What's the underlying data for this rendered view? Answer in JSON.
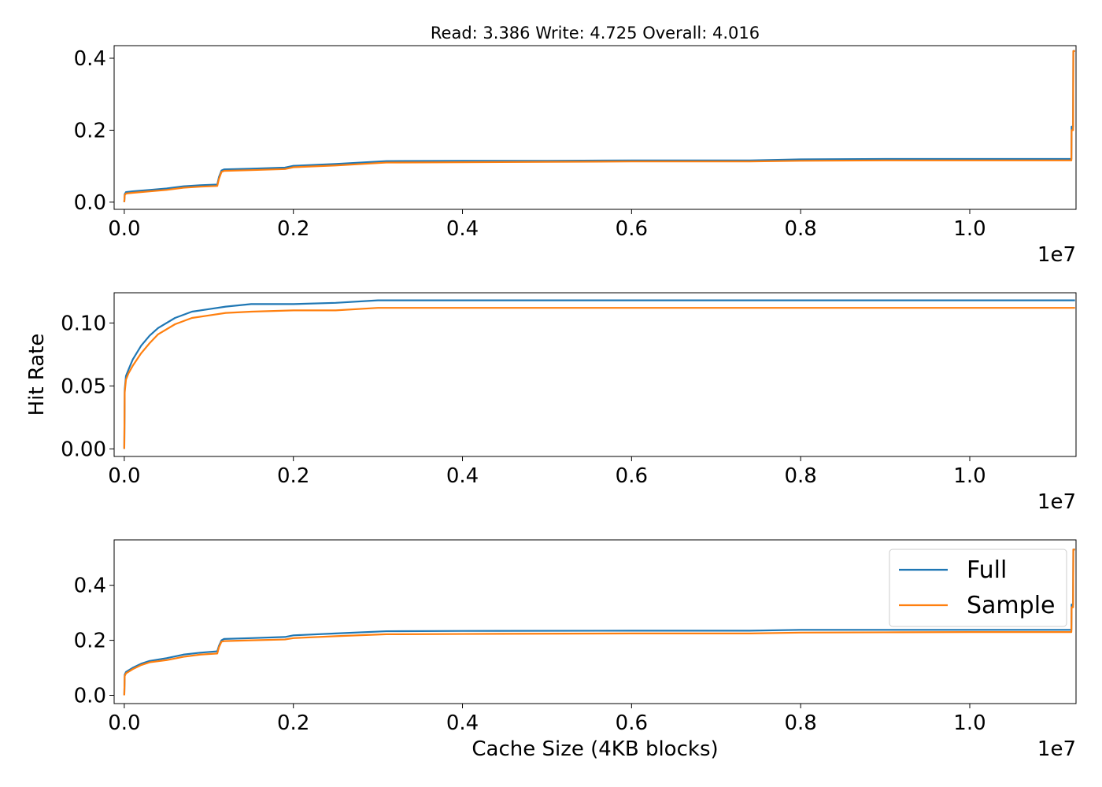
{
  "figure": {
    "title": "Read: 3.386 Write: 4.725 Overall: 4.016",
    "ylabel": "Hit Rate",
    "xlabel": "Cache Size (4KB blocks)"
  },
  "colors": {
    "full": "#1f77b4",
    "sample": "#ff7f0e",
    "axes": "#000000",
    "legend_border": "#cccccc"
  },
  "chart_data": [
    {
      "type": "line",
      "title": "Read: 3.386 Write: 4.725 Overall: 4.016",
      "xlabel": "",
      "ylabel": "",
      "x_offset_label": "1e7",
      "xlim": [
        -0.012,
        1.1257
      ],
      "ylim": [
        -0.02,
        0.435
      ],
      "x_ticks": [
        0.0,
        0.2,
        0.4,
        0.6,
        0.8,
        1.0
      ],
      "x_tick_labels": [
        "0.0",
        "0.2",
        "0.4",
        "0.6",
        "0.8",
        "1.0"
      ],
      "y_ticks": [
        0.0,
        0.2,
        0.4
      ],
      "y_tick_labels": [
        "0.0",
        "0.2",
        "0.4"
      ],
      "grid": false,
      "legend": null,
      "series": [
        {
          "name": "Full",
          "color": "#1f77b4",
          "x": [
            0.0,
            0.0005,
            0.002,
            0.01,
            0.03,
            0.05,
            0.07,
            0.09,
            0.11,
            0.112,
            0.115,
            0.118,
            0.15,
            0.19,
            0.2,
            0.25,
            0.31,
            0.4,
            0.5,
            0.6,
            0.7,
            0.74,
            0.8,
            0.9,
            1.0,
            1.05,
            1.1,
            1.1202,
            1.1205,
            1.1222,
            1.1225,
            1.1245
          ],
          "y": [
            0.0,
            0.022,
            0.028,
            0.03,
            0.034,
            0.038,
            0.044,
            0.047,
            0.049,
            0.07,
            0.088,
            0.091,
            0.093,
            0.096,
            0.101,
            0.106,
            0.114,
            0.115,
            0.115,
            0.116,
            0.116,
            0.116,
            0.119,
            0.12,
            0.12,
            0.12,
            0.12,
            0.12,
            0.21,
            0.21,
            0.42,
            0.42
          ]
        },
        {
          "name": "Sample",
          "color": "#ff7f0e",
          "x": [
            0.0,
            0.0005,
            0.002,
            0.01,
            0.03,
            0.05,
            0.07,
            0.09,
            0.11,
            0.112,
            0.115,
            0.118,
            0.15,
            0.19,
            0.2,
            0.25,
            0.31,
            0.4,
            0.5,
            0.6,
            0.7,
            0.74,
            0.8,
            0.9,
            1.0,
            1.05,
            1.1,
            1.1202,
            1.1205,
            1.1222,
            1.1225,
            1.1245
          ],
          "y": [
            0.0,
            0.019,
            0.024,
            0.026,
            0.03,
            0.034,
            0.04,
            0.043,
            0.045,
            0.065,
            0.084,
            0.087,
            0.089,
            0.092,
            0.097,
            0.102,
            0.11,
            0.111,
            0.112,
            0.113,
            0.113,
            0.113,
            0.115,
            0.116,
            0.116,
            0.116,
            0.116,
            0.116,
            0.2,
            0.2,
            0.42,
            0.42
          ]
        }
      ]
    },
    {
      "type": "line",
      "title": "",
      "xlabel": "",
      "ylabel": "Hit Rate",
      "x_offset_label": "1e7",
      "xlim": [
        -0.012,
        1.1257
      ],
      "ylim": [
        -0.006,
        0.124
      ],
      "x_ticks": [
        0.0,
        0.2,
        0.4,
        0.6,
        0.8,
        1.0
      ],
      "x_tick_labels": [
        "0.0",
        "0.2",
        "0.4",
        "0.6",
        "0.8",
        "1.0"
      ],
      "y_ticks": [
        0.0,
        0.05,
        0.1
      ],
      "y_tick_labels": [
        "0.00",
        "0.05",
        "0.10"
      ],
      "grid": false,
      "legend": null,
      "series": [
        {
          "name": "Full",
          "color": "#1f77b4",
          "x": [
            0.0,
            0.0005,
            0.002,
            0.005,
            0.01,
            0.02,
            0.03,
            0.04,
            0.06,
            0.08,
            0.1,
            0.12,
            0.15,
            0.2,
            0.25,
            0.3,
            0.4,
            0.6,
            0.8,
            1.0,
            1.1245
          ],
          "y": [
            0.0,
            0.047,
            0.058,
            0.063,
            0.071,
            0.082,
            0.09,
            0.096,
            0.104,
            0.109,
            0.111,
            0.113,
            0.115,
            0.115,
            0.116,
            0.118,
            0.118,
            0.118,
            0.118,
            0.118,
            0.118
          ]
        },
        {
          "name": "Sample",
          "color": "#ff7f0e",
          "x": [
            0.0,
            0.0005,
            0.002,
            0.005,
            0.01,
            0.02,
            0.03,
            0.04,
            0.06,
            0.08,
            0.1,
            0.12,
            0.15,
            0.2,
            0.25,
            0.3,
            0.4,
            0.6,
            0.8,
            1.0,
            1.1245
          ],
          "y": [
            0.0,
            0.045,
            0.055,
            0.06,
            0.066,
            0.076,
            0.084,
            0.091,
            0.099,
            0.104,
            0.106,
            0.108,
            0.109,
            0.11,
            0.11,
            0.112,
            0.112,
            0.112,
            0.112,
            0.112,
            0.112
          ]
        }
      ]
    },
    {
      "type": "line",
      "title": "",
      "xlabel": "Cache Size (4KB blocks)",
      "ylabel": "",
      "x_offset_label": "1e7",
      "xlim": [
        -0.012,
        1.1257
      ],
      "ylim": [
        -0.03,
        0.565
      ],
      "x_ticks": [
        0.0,
        0.2,
        0.4,
        0.6,
        0.8,
        1.0
      ],
      "x_tick_labels": [
        "0.0",
        "0.2",
        "0.4",
        "0.6",
        "0.8",
        "1.0"
      ],
      "y_ticks": [
        0.0,
        0.2,
        0.4
      ],
      "y_tick_labels": [
        "0.0",
        "0.2",
        "0.4"
      ],
      "grid": false,
      "legend": {
        "position": "upper right",
        "entries": [
          "Full",
          "Sample"
        ]
      },
      "series": [
        {
          "name": "Full",
          "color": "#1f77b4",
          "x": [
            0.0,
            0.0005,
            0.002,
            0.01,
            0.02,
            0.03,
            0.05,
            0.07,
            0.09,
            0.11,
            0.112,
            0.115,
            0.118,
            0.15,
            0.19,
            0.2,
            0.25,
            0.31,
            0.4,
            0.6,
            0.74,
            0.8,
            0.9,
            1.0,
            1.1202,
            1.1205,
            1.1222,
            1.1225,
            1.1245
          ],
          "y": [
            0.0,
            0.075,
            0.085,
            0.1,
            0.115,
            0.125,
            0.135,
            0.148,
            0.155,
            0.16,
            0.18,
            0.2,
            0.205,
            0.208,
            0.212,
            0.218,
            0.225,
            0.233,
            0.234,
            0.235,
            0.235,
            0.238,
            0.238,
            0.238,
            0.238,
            0.33,
            0.33,
            0.53,
            0.53
          ]
        },
        {
          "name": "Sample",
          "color": "#ff7f0e",
          "x": [
            0.0,
            0.0005,
            0.002,
            0.01,
            0.02,
            0.03,
            0.05,
            0.07,
            0.09,
            0.11,
            0.112,
            0.115,
            0.118,
            0.15,
            0.19,
            0.2,
            0.25,
            0.31,
            0.4,
            0.6,
            0.74,
            0.8,
            0.9,
            1.0,
            1.1202,
            1.1205,
            1.1222,
            1.1225,
            1.1245
          ],
          "y": [
            0.0,
            0.07,
            0.08,
            0.095,
            0.11,
            0.12,
            0.128,
            0.14,
            0.148,
            0.152,
            0.175,
            0.195,
            0.197,
            0.2,
            0.203,
            0.208,
            0.215,
            0.222,
            0.223,
            0.225,
            0.225,
            0.228,
            0.229,
            0.23,
            0.23,
            0.32,
            0.32,
            0.53,
            0.53
          ]
        }
      ]
    }
  ]
}
